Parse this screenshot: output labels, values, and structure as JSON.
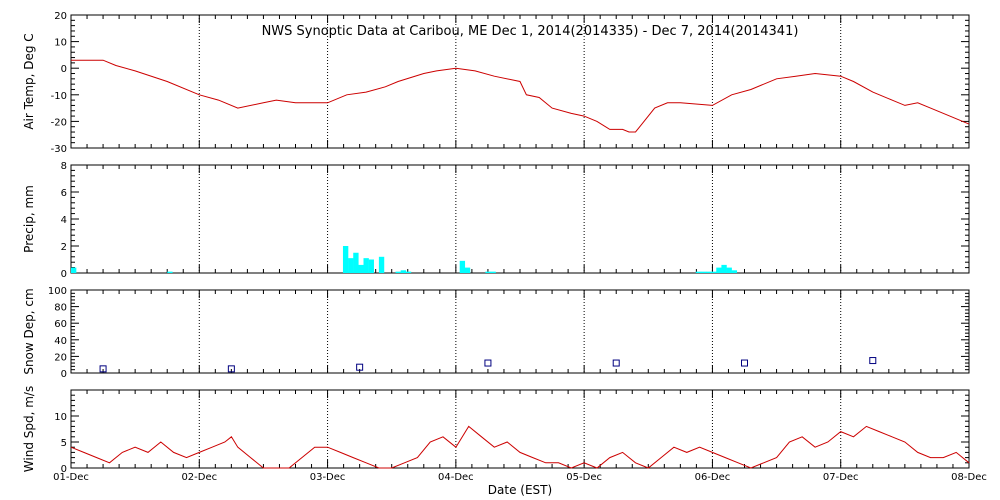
{
  "chart_data": {
    "type": "multi-panel",
    "title": "NWS Synoptic Data at Caribou, ME   Dec  1, 2014(2014335) - Dec  7, 2014(2014341)",
    "xlabel": "Date (EST)",
    "x_ticks": [
      "01-Dec",
      "02-Dec",
      "03-Dec",
      "04-Dec",
      "05-Dec",
      "06-Dec",
      "07-Dec",
      "08-Dec"
    ],
    "x_range_days": [
      0,
      7
    ],
    "panels": [
      {
        "id": "air-temp",
        "type": "line",
        "ylabel": "Air Temp, Deg C",
        "ylim": [
          -30,
          20
        ],
        "yticks": [
          -30,
          -20,
          -10,
          0,
          10,
          20
        ],
        "color": "#cc0000",
        "x": [
          0,
          0.15,
          0.25,
          0.35,
          0.5,
          0.75,
          1.0,
          1.15,
          1.3,
          1.5,
          1.6,
          1.75,
          2.0,
          2.15,
          2.3,
          2.45,
          2.55,
          2.75,
          2.85,
          3.0,
          3.15,
          3.3,
          3.5,
          3.55,
          3.65,
          3.75,
          3.9,
          4.0,
          4.1,
          4.2,
          4.3,
          4.35,
          4.4,
          4.45,
          4.55,
          4.65,
          4.75,
          5.0,
          5.15,
          5.3,
          5.5,
          5.65,
          5.8,
          6.0,
          6.1,
          6.25,
          6.4,
          6.5,
          6.6,
          6.7,
          6.85,
          7.0
        ],
        "y": [
          3,
          3,
          3,
          1,
          -1,
          -5,
          -10,
          -12,
          -15,
          -13,
          -12,
          -13,
          -13,
          -10,
          -9,
          -7,
          -5,
          -2,
          -1,
          0,
          -1,
          -3,
          -5,
          -10,
          -11,
          -15,
          -17,
          -18,
          -20,
          -23,
          -23,
          -24,
          -24,
          -21,
          -15,
          -13,
          -13,
          -14,
          -10,
          -8,
          -4,
          -3,
          -2,
          -3,
          -5,
          -9,
          -12,
          -14,
          -13,
          -15,
          -18,
          -21
        ]
      },
      {
        "id": "precip",
        "type": "bar",
        "ylabel": "Precip, mm",
        "ylim": [
          0,
          8
        ],
        "yticks": [
          0,
          2,
          4,
          6,
          8
        ],
        "color": "#00ffff",
        "x": [
          0.0,
          0.75,
          2.12,
          2.16,
          2.2,
          2.24,
          2.28,
          2.32,
          2.4,
          2.53,
          2.57,
          2.61,
          3.03,
          3.07,
          3.23,
          3.27,
          4.87,
          4.91,
          4.95,
          4.99,
          5.03,
          5.07,
          5.11,
          5.15
        ],
        "values": [
          0.4,
          0.1,
          2.0,
          1.1,
          1.5,
          0.6,
          1.1,
          1.0,
          1.2,
          0.1,
          0.2,
          0.1,
          0.9,
          0.4,
          0.1,
          0.1,
          0.1,
          0.1,
          0.1,
          0.1,
          0.4,
          0.6,
          0.4,
          0.2
        ]
      },
      {
        "id": "snow-depth",
        "type": "scatter",
        "ylabel": "Snow Dep, cm",
        "ylim": [
          0,
          100
        ],
        "yticks": [
          0,
          20,
          40,
          60,
          80,
          100
        ],
        "color": "#000080",
        "x": [
          0.25,
          1.25,
          2.25,
          3.25,
          4.25,
          5.25,
          6.25
        ],
        "y": [
          5,
          5,
          7,
          12,
          12,
          12,
          15
        ]
      },
      {
        "id": "wind-speed",
        "type": "line",
        "ylabel": "Wind Spd, m/s",
        "ylim": [
          0,
          15
        ],
        "yticks": [
          0,
          5,
          10
        ],
        "color": "#cc0000",
        "x": [
          0,
          0.1,
          0.2,
          0.3,
          0.4,
          0.5,
          0.6,
          0.7,
          0.8,
          0.9,
          1.0,
          1.1,
          1.2,
          1.25,
          1.3,
          1.4,
          1.5,
          1.6,
          1.7,
          1.8,
          1.9,
          2.0,
          2.1,
          2.2,
          2.3,
          2.4,
          2.5,
          2.6,
          2.7,
          2.8,
          2.9,
          3.0,
          3.1,
          3.2,
          3.3,
          3.4,
          3.5,
          3.6,
          3.7,
          3.8,
          3.9,
          4.0,
          4.1,
          4.2,
          4.3,
          4.4,
          4.5,
          4.6,
          4.7,
          4.8,
          4.9,
          5.0,
          5.1,
          5.2,
          5.3,
          5.4,
          5.5,
          5.6,
          5.7,
          5.8,
          5.9,
          6.0,
          6.1,
          6.2,
          6.3,
          6.4,
          6.5,
          6.6,
          6.7,
          6.8,
          6.9,
          7.0
        ],
        "y": [
          4,
          3,
          2,
          1,
          3,
          4,
          3,
          5,
          3,
          2,
          3,
          4,
          5,
          6,
          4,
          2,
          0,
          0,
          0,
          2,
          4,
          4,
          3,
          2,
          1,
          0,
          0,
          1,
          2,
          5,
          6,
          4,
          8,
          6,
          4,
          5,
          3,
          2,
          1,
          1,
          0,
          1,
          0,
          2,
          3,
          1,
          0,
          2,
          4,
          3,
          4,
          3,
          2,
          1,
          0,
          1,
          2,
          5,
          6,
          4,
          5,
          7,
          6,
          8,
          7,
          6,
          5,
          3,
          2,
          2,
          3,
          1
        ]
      }
    ]
  }
}
